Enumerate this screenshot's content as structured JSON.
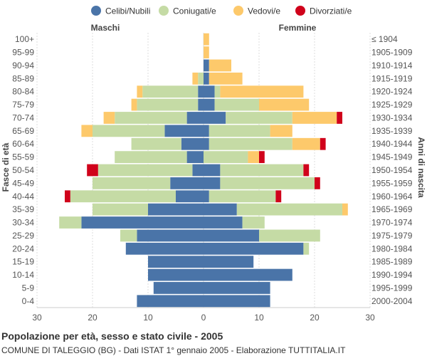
{
  "chart_data": {
    "type": "bar",
    "title": "Popolazione per età, sesso e stato civile - 2005",
    "subtitle": "COMUNE DI TALEGGIO (BG) - Dati ISTAT 1° gennaio 2005 - Elaborazione TUTTITALIA.IT",
    "left_header": "Maschi",
    "right_header": "Femmine",
    "ylabel_left": "Fasce di età",
    "ylabel_right": "Anni di nascita",
    "xlim": [
      -30,
      30
    ],
    "x_ticks": [
      -30,
      -20,
      -10,
      0,
      10,
      20,
      30
    ],
    "x_tick_labels": [
      "30",
      "20",
      "10",
      "0",
      "10",
      "20",
      "30"
    ],
    "legend": [
      {
        "name": "Celibi/Nubili",
        "color": "#4a74a8"
      },
      {
        "name": "Coniugati/e",
        "color": "#c5dba5"
      },
      {
        "name": "Vedovi/e",
        "color": "#fdc96b"
      },
      {
        "name": "Divorziati/e",
        "color": "#d0021b"
      }
    ],
    "age_groups": [
      "100+",
      "95-99",
      "90-94",
      "85-89",
      "80-84",
      "75-79",
      "70-74",
      "65-69",
      "60-64",
      "55-59",
      "50-54",
      "45-49",
      "40-44",
      "35-39",
      "30-34",
      "25-29",
      "20-24",
      "15-19",
      "10-14",
      "5-9",
      "0-4"
    ],
    "birth_years": [
      "≤ 1904",
      "1905-1909",
      "1910-1914",
      "1915-1919",
      "1920-1924",
      "1925-1929",
      "1930-1934",
      "1935-1939",
      "1940-1944",
      "1945-1949",
      "1950-1954",
      "1955-1959",
      "1960-1964",
      "1965-1969",
      "1970-1974",
      "1975-1979",
      "1980-1984",
      "1985-1989",
      "1990-1994",
      "1995-1999",
      "2000-2004"
    ],
    "males": {
      "Celibi/Nubili": [
        0,
        0,
        0,
        0,
        1,
        1,
        3,
        7,
        4,
        3,
        2,
        6,
        5,
        10,
        22,
        12,
        14,
        10,
        10,
        9,
        12
      ],
      "Coniugati/e": [
        0,
        0,
        0,
        1,
        10,
        11,
        13,
        13,
        9,
        13,
        17,
        14,
        19,
        10,
        4,
        3,
        0,
        0,
        0,
        0,
        0
      ],
      "Vedovi/e": [
        0,
        0,
        0,
        1,
        1,
        1,
        2,
        2,
        0,
        0,
        0,
        0,
        0,
        0,
        0,
        0,
        0,
        0,
        0,
        0,
        0
      ],
      "Divorziati/e": [
        0,
        0,
        0,
        0,
        0,
        0,
        0,
        0,
        0,
        0,
        2,
        0,
        1,
        0,
        0,
        0,
        0,
        0,
        0,
        0,
        0
      ]
    },
    "females": {
      "Celibi/Nubili": [
        0,
        0,
        1,
        1,
        2,
        2,
        4,
        1,
        1,
        0,
        3,
        3,
        1,
        6,
        7,
        10,
        18,
        9,
        16,
        12,
        12
      ],
      "Coniugati/e": [
        0,
        0,
        0,
        0,
        1,
        8,
        12,
        11,
        15,
        8,
        15,
        17,
        12,
        19,
        4,
        11,
        1,
        0,
        0,
        0,
        0
      ],
      "Vedovi/e": [
        1,
        1,
        4,
        6,
        15,
        9,
        8,
        4,
        5,
        2,
        0,
        0,
        0,
        1,
        0,
        0,
        0,
        0,
        0,
        0,
        0
      ],
      "Divorziati/e": [
        0,
        0,
        0,
        0,
        0,
        0,
        1,
        0,
        1,
        1,
        1,
        1,
        1,
        0,
        0,
        0,
        0,
        0,
        0,
        0,
        0
      ]
    }
  }
}
